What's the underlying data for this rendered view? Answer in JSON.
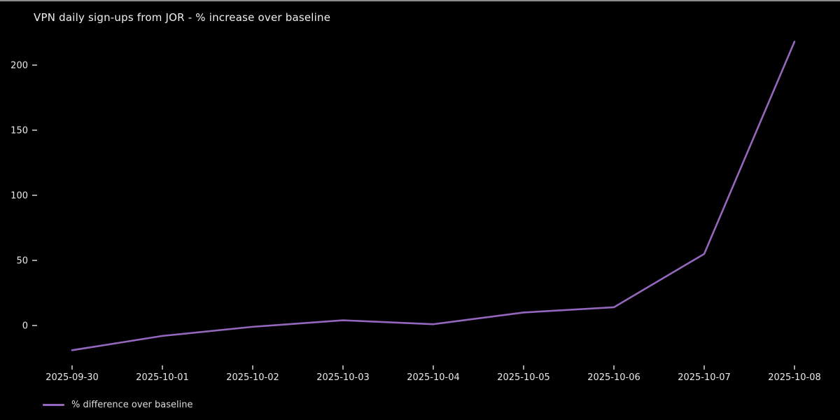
{
  "window": {
    "top_border_color": "#8c8c8c"
  },
  "chart": {
    "title": "VPN daily sign-ups from JOR - % increase over baseline",
    "colors": {
      "background": "#000000",
      "text": "#e8e8e8",
      "tick": "#c8c8c8",
      "line": "#9467bd"
    },
    "legend": {
      "label": "% difference over baseline"
    }
  },
  "chart_data": {
    "type": "line",
    "title": "VPN daily sign-ups from JOR - % increase over baseline",
    "x": [
      "2025-09-30",
      "2025-10-01",
      "2025-10-02",
      "2025-10-03",
      "2025-10-04",
      "2025-10-05",
      "2025-10-06",
      "2025-10-07",
      "2025-10-08"
    ],
    "series": [
      {
        "name": "% difference over baseline",
        "values": [
          -19,
          -8,
          -1,
          4,
          1,
          10,
          14,
          55,
          218
        ]
      }
    ],
    "xlabel": "",
    "ylabel": "",
    "yticks": [
      0,
      50,
      100,
      150,
      200
    ],
    "ylim": [
      -30,
      230
    ],
    "grid": false,
    "legend_position": "lower left",
    "theme": "dark"
  }
}
